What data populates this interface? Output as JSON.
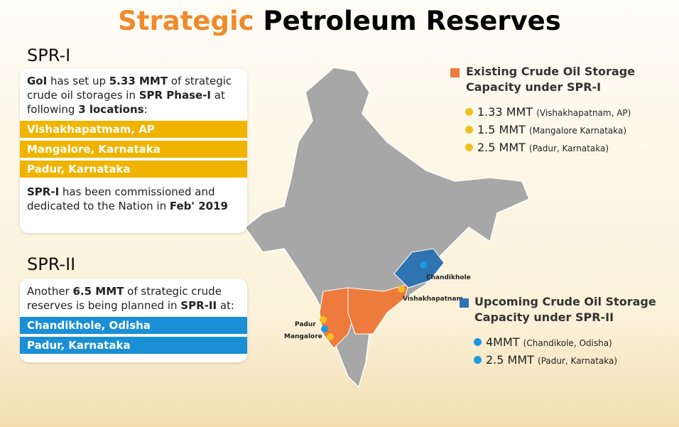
{
  "title": {
    "accent": "Strategic",
    "rest": "Petroleum Reserves"
  },
  "spr1": {
    "heading": "SPR-I",
    "intro": [
      "GoI",
      " has set up ",
      "5.33 MMT",
      " of strategic crude oil storages in ",
      "SPR Phase-I",
      " at following ",
      "3 locations",
      ":"
    ],
    "locations": [
      "Vishakhapatmam, AP",
      "Mangalore, Karnataka",
      "Padur, Karnataka"
    ],
    "note": [
      "SPR-I",
      " has been commissioned and dedicated to the Nation in ",
      "Feb' 2019"
    ]
  },
  "spr2": {
    "heading": "SPR-II",
    "intro": [
      "Another ",
      "6.5 MMT",
      " of strategic crude reserves is being planned in ",
      "SPR-II",
      " at:"
    ],
    "locations": [
      "Chandikhole, Odisha",
      "Padur, Karnataka"
    ]
  },
  "legend_existing": {
    "title": "Existing Crude Oil Storage Capacity under SPR-I",
    "items": [
      {
        "amount": "1.33 MMT",
        "place": "(Vishakhapatnam, AP)"
      },
      {
        "amount": "1.5 MMT",
        "place": "(Mangalore Karnataka)"
      },
      {
        "amount": "2.5 MMT",
        "place": "(Padur, Karnataka)"
      }
    ]
  },
  "legend_upcoming": {
    "title": "Upcoming Crude Oil Storage Capacity under SPR-II",
    "items": [
      {
        "amount": "4MMT",
        "place": "(Chandikole, Odisha)"
      },
      {
        "amount": "2.5 MMT",
        "place": "(Padur, Karnataka)"
      }
    ]
  },
  "map_labels": [
    "Chandikhole",
    "Vishakhapatnam",
    "Padur",
    "Mangalore"
  ]
}
